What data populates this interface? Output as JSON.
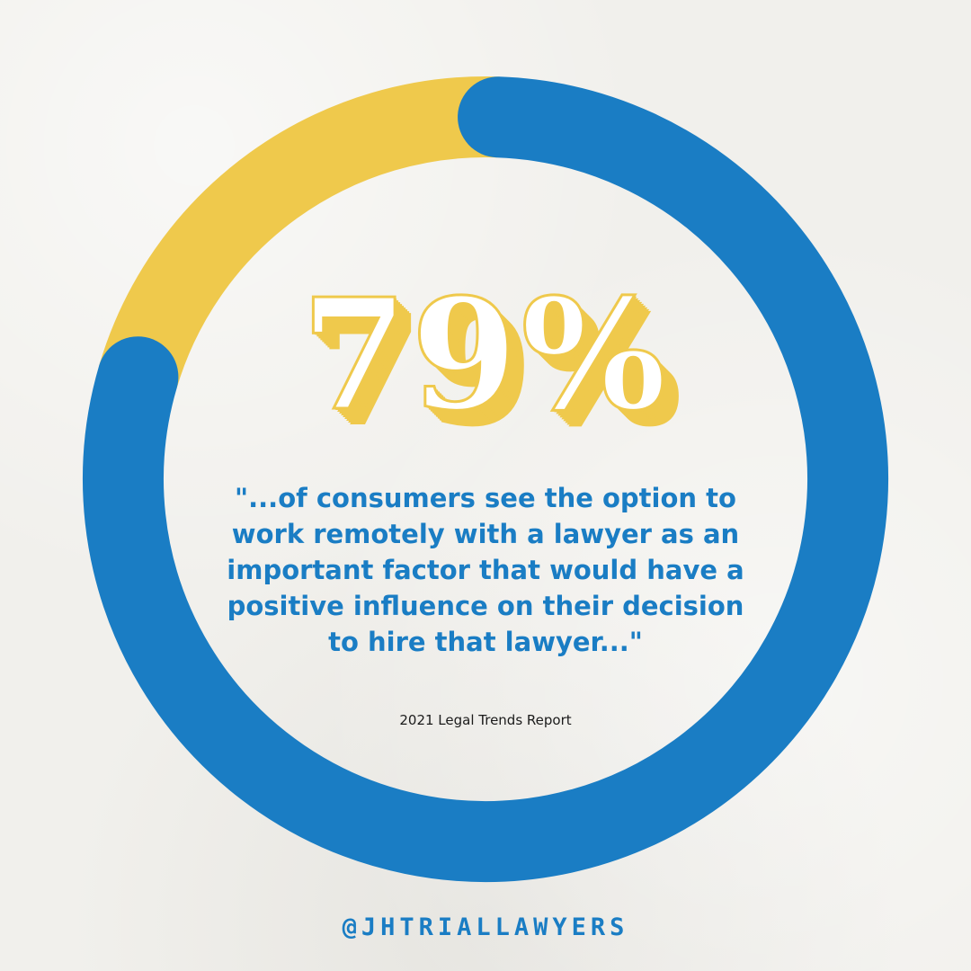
{
  "chart_data": {
    "type": "pie",
    "style": "donut",
    "values": [
      79,
      21
    ],
    "colors": [
      "#1a7dc4",
      "#efc94c"
    ],
    "center_label": "79%"
  },
  "quote": "\"...of consumers see the option to work remotely with a lawyer as an important factor that would have a positive influence on their decision to hire that lawyer...\"",
  "source": "2021 Legal Trends Report",
  "handle": "@JHTRIALLAWYERS"
}
